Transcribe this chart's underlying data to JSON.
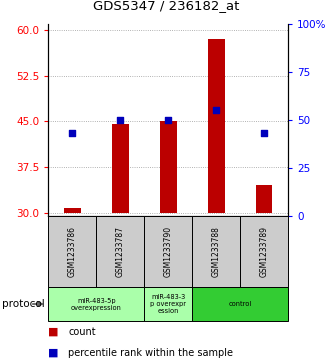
{
  "title": "GDS5347 / 236182_at",
  "samples": [
    "GSM1233786",
    "GSM1233787",
    "GSM1233790",
    "GSM1233788",
    "GSM1233789"
  ],
  "count_values": [
    30.8,
    44.5,
    45.0,
    58.5,
    34.5
  ],
  "percentile_values": [
    43,
    50,
    50,
    55,
    43
  ],
  "ylim_left": [
    29.5,
    61
  ],
  "ylim_right": [
    0,
    100
  ],
  "yticks_left": [
    30,
    37.5,
    45,
    52.5,
    60
  ],
  "yticks_right": [
    0,
    25,
    50,
    75,
    100
  ],
  "bar_color": "#bb0000",
  "dot_color": "#0000bb",
  "bar_bottom": 30,
  "group_spans": [
    {
      "start": 0,
      "end": 1,
      "label": "miR-483-5p\noverexpression",
      "color": "#aaffaa"
    },
    {
      "start": 2,
      "end": 2,
      "label": "miR-483-3\np overexpr\nession",
      "color": "#aaffaa"
    },
    {
      "start": 3,
      "end": 4,
      "label": "control",
      "color": "#33cc33"
    }
  ],
  "protocol_label": "protocol",
  "legend_count_label": "count",
  "legend_percentile_label": "percentile rank within the sample",
  "bar_width": 0.35,
  "sample_box_color": "#cccccc"
}
